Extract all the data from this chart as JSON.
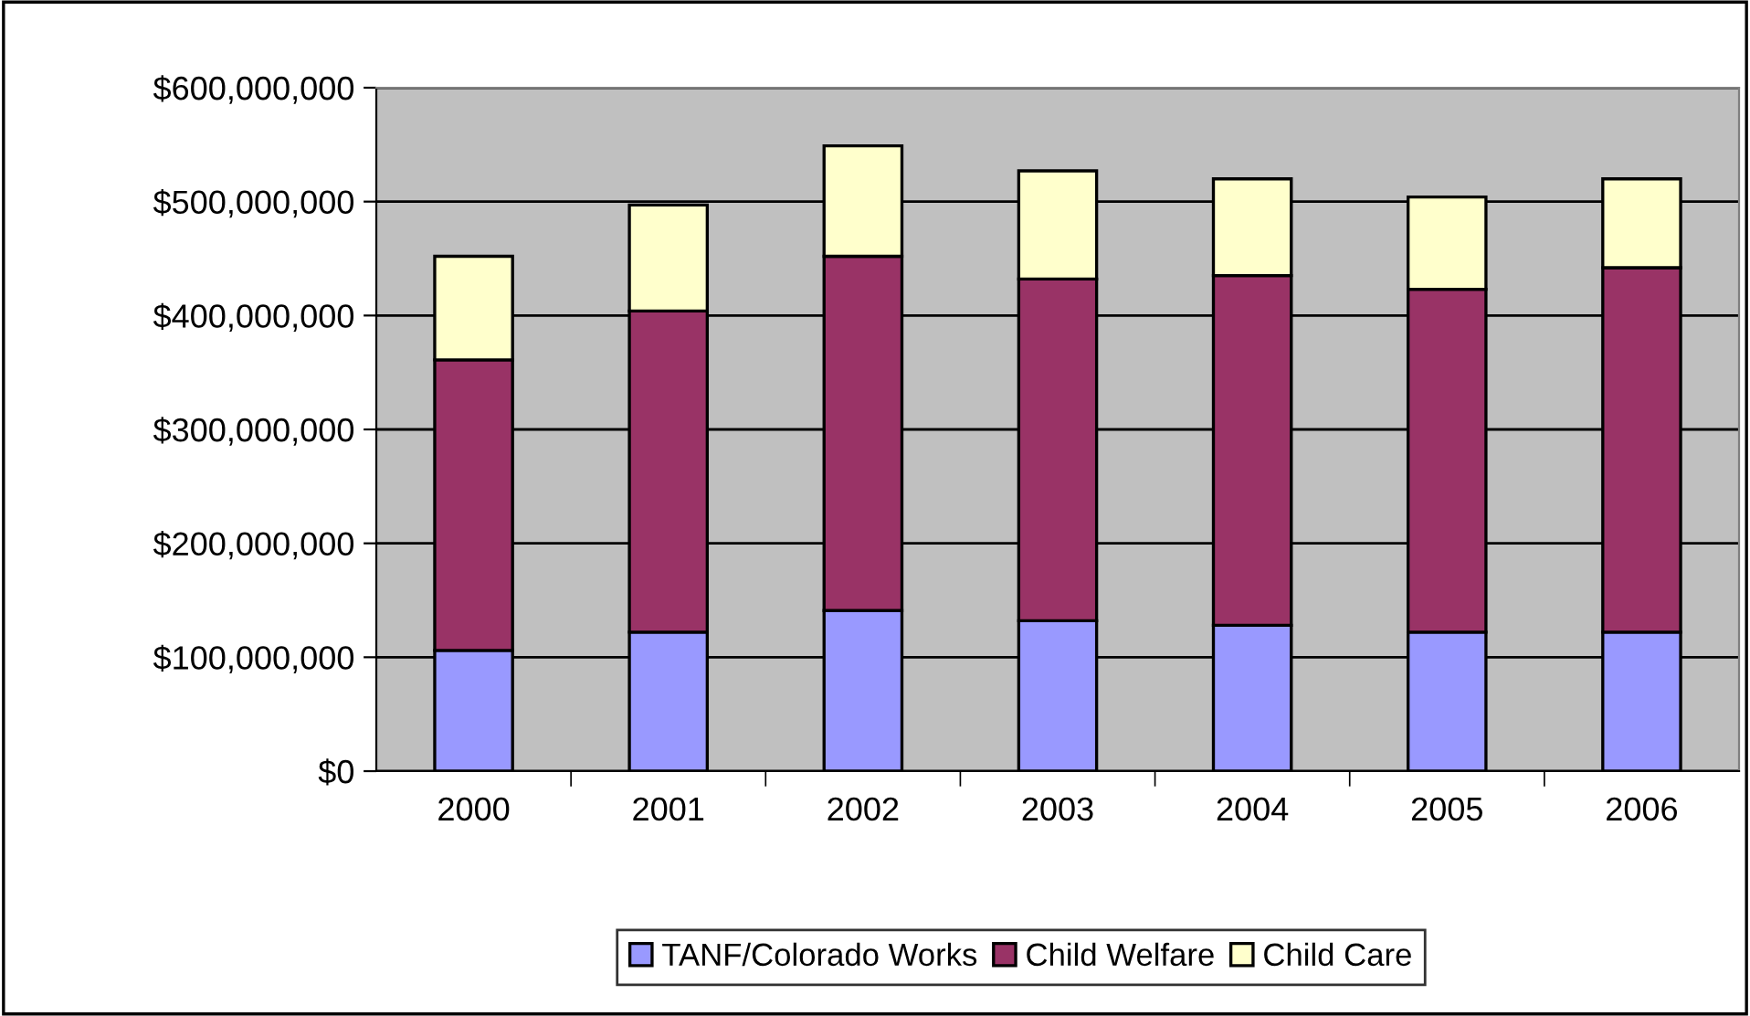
{
  "chart_data": {
    "type": "bar",
    "stacked": true,
    "categories": [
      "2000",
      "2001",
      "2002",
      "2003",
      "2004",
      "2005",
      "2006"
    ],
    "series": [
      {
        "name": "TANF/Colorado Works",
        "color": "#9999ff",
        "values": [
          106000000,
          122000000,
          141000000,
          132000000,
          128000000,
          122000000,
          122000000
        ]
      },
      {
        "name": "Child Welfare",
        "color": "#993366",
        "values": [
          255000000,
          282000000,
          311000000,
          300000000,
          307000000,
          301000000,
          320000000
        ]
      },
      {
        "name": "Child Care",
        "color": "#ffffcc",
        "values": [
          91000000,
          93000000,
          97000000,
          95000000,
          85000000,
          81000000,
          78000000
        ]
      }
    ],
    "ylim": [
      0,
      600000000
    ],
    "yticks": [
      {
        "value": 0,
        "label": "$0"
      },
      {
        "value": 100000000,
        "label": "$100,000,000"
      },
      {
        "value": 200000000,
        "label": "$200,000,000"
      },
      {
        "value": 300000000,
        "label": "$300,000,000"
      },
      {
        "value": 400000000,
        "label": "$400,000,000"
      },
      {
        "value": 500000000,
        "label": "$500,000,000"
      },
      {
        "value": 600000000,
        "label": "$600,000,000"
      }
    ],
    "grid": "y",
    "legend": "bottom"
  }
}
